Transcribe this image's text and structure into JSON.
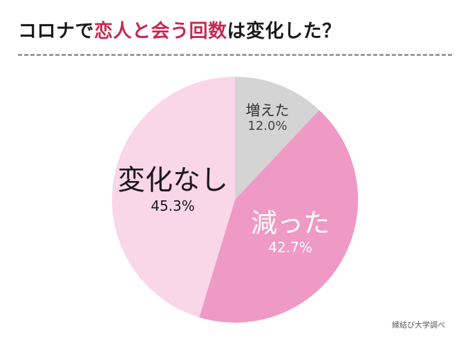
{
  "title": {
    "prefix": "コロナで",
    "accent": "恋人と会う回数",
    "suffix": "は変化した？",
    "accent_color": "#c8284f"
  },
  "source": "縁結び大学調べ",
  "colors": {
    "increased": "#d4d4d4",
    "decreased": "#ef9ac4",
    "no_change": "#f9d6e8"
  },
  "chart_data": {
    "type": "pie",
    "title": "コロナで恋人と会う回数は変化した？",
    "categories": [
      "増えた",
      "減った",
      "変化なし"
    ],
    "values": [
      12.0,
      42.7,
      45.3
    ],
    "labels": [
      "12.0%",
      "42.7%",
      "45.3%"
    ],
    "colors": [
      "#d4d4d4",
      "#ef9ac4",
      "#f9d6e8"
    ],
    "start_angle": "12 o'clock, clockwise",
    "source": "縁結び大学調べ"
  }
}
